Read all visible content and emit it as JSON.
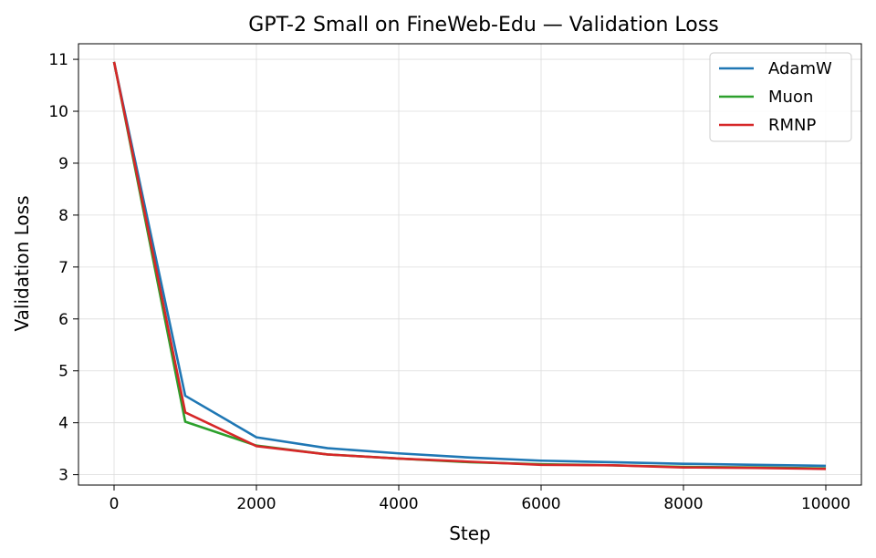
{
  "chart_data": {
    "type": "line",
    "title": "GPT-2 Small on FineWeb-Edu — Validation Loss",
    "xlabel": "Step",
    "ylabel": "Validation Loss",
    "xlim": [
      -500,
      10500
    ],
    "ylim": [
      2.8,
      11.3
    ],
    "xticks": [
      0,
      2000,
      4000,
      6000,
      8000,
      10000
    ],
    "yticks": [
      3,
      4,
      5,
      6,
      7,
      8,
      9,
      10,
      11
    ],
    "grid": true,
    "legend_position": "top-right",
    "x": [
      0,
      1000,
      2000,
      3000,
      4000,
      5000,
      6000,
      7000,
      8000,
      9000,
      10000
    ],
    "series": [
      {
        "name": "AdamW",
        "color": "#1f77b4",
        "values": [
          10.95,
          4.52,
          3.72,
          3.51,
          3.41,
          3.33,
          3.27,
          3.24,
          3.21,
          3.19,
          3.17
        ]
      },
      {
        "name": "Muon",
        "color": "#2ca02c",
        "values": [
          10.95,
          4.02,
          3.56,
          3.39,
          3.31,
          3.24,
          3.2,
          3.18,
          3.15,
          3.14,
          3.12
        ]
      },
      {
        "name": "RMNP",
        "color": "#d62728",
        "values": [
          10.95,
          4.2,
          3.55,
          3.39,
          3.31,
          3.25,
          3.19,
          3.18,
          3.14,
          3.13,
          3.11
        ]
      }
    ]
  }
}
